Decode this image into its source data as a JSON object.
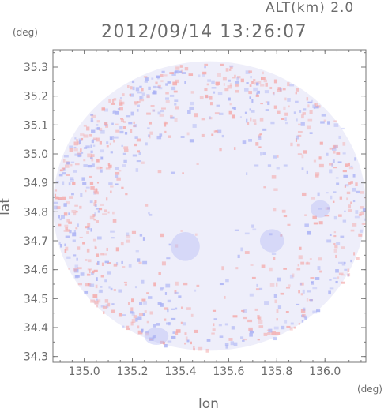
{
  "header": {
    "altitude_label": "ALT(km) 2.0",
    "timestamp": "2012/09/14 13:26:07"
  },
  "chart_data": {
    "type": "heatmap",
    "title": "2012/09/14 13:26:07",
    "subtitle": "ALT(km) 2.0",
    "xlabel": "lon",
    "ylabel": "lat",
    "x_unit": "(deg)",
    "y_unit": "(deg)",
    "xlim": [
      134.87,
      136.17
    ],
    "ylim": [
      34.28,
      35.36
    ],
    "x_ticks": [
      135.0,
      135.2,
      135.4,
      135.6,
      135.8,
      136.0
    ],
    "x_tick_labels": [
      "135.0",
      "135.2",
      "135.4",
      "135.6",
      "135.8",
      "136.0"
    ],
    "y_ticks": [
      34.3,
      34.4,
      34.5,
      34.6,
      34.7,
      34.8,
      34.9,
      35.0,
      35.1,
      35.2,
      35.3
    ],
    "y_tick_labels": [
      "34.3",
      "34.4",
      "34.5",
      "34.6",
      "34.7",
      "34.8",
      "34.9",
      "35.0",
      "35.1",
      "35.2",
      "35.3"
    ],
    "radar_center": {
      "lon": 135.52,
      "lat": 34.82
    },
    "radar_range_deg": {
      "lon": 0.65,
      "lat": 0.5
    },
    "colors": {
      "positive": "#f4a8a8",
      "negative": "#a8b0f4",
      "near_zero": "#eeeefa",
      "axis": "#777777",
      "text": "#6b6b6b"
    },
    "notes": "Doppler-like field; light red/blue noisy texture near the edge of the radar coverage, smooth pale blue in the interior."
  }
}
